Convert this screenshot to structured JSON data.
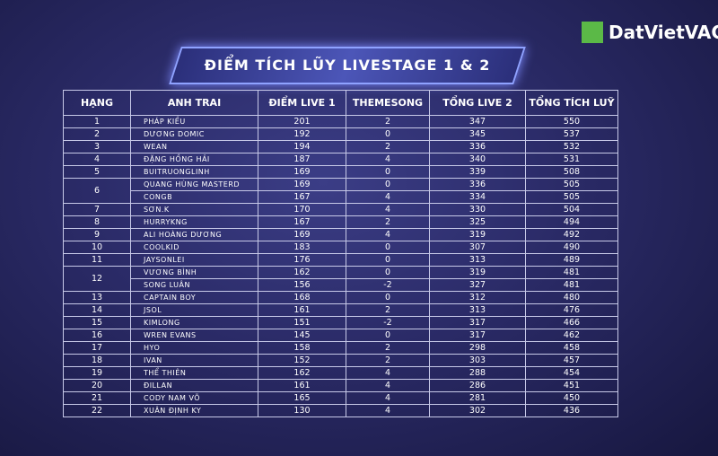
{
  "header": {
    "title": "ĐIỂM TÍCH LŨY LIVESTAGE 1 & 2",
    "logo": "DatVietVAC"
  },
  "table": {
    "columns": [
      "HẠNG",
      "ANH TRAI",
      "ĐIỂM LIVE 1",
      "THEMESONG",
      "TỔNG LIVE 2",
      "TỔNG TÍCH LUỸ"
    ],
    "groups": [
      {
        "rank": "1",
        "rows": [
          [
            "PHÁP KIỀU",
            201,
            2,
            347,
            550
          ]
        ]
      },
      {
        "rank": "2",
        "rows": [
          [
            "DƯƠNG DOMIC",
            192,
            0,
            345,
            537
          ]
        ]
      },
      {
        "rank": "3",
        "rows": [
          [
            "WEAN",
            194,
            2,
            336,
            532
          ]
        ]
      },
      {
        "rank": "4",
        "rows": [
          [
            "ĐẶNG HỒNG HẢI",
            187,
            4,
            340,
            531
          ]
        ]
      },
      {
        "rank": "5",
        "rows": [
          [
            "BUITRUONGLINH",
            169,
            0,
            339,
            508
          ]
        ]
      },
      {
        "rank": "6",
        "rows": [
          [
            "QUANG HÙNG MASTERD",
            169,
            0,
            336,
            505
          ],
          [
            "CONGB",
            167,
            4,
            334,
            505
          ]
        ]
      },
      {
        "rank": "7",
        "rows": [
          [
            "SƠN.K",
            170,
            4,
            330,
            504
          ]
        ]
      },
      {
        "rank": "8",
        "rows": [
          [
            "HURRYKNG",
            167,
            2,
            325,
            494
          ]
        ]
      },
      {
        "rank": "9",
        "rows": [
          [
            "ALI HOÀNG DƯƠNG",
            169,
            4,
            319,
            492
          ]
        ]
      },
      {
        "rank": "10",
        "rows": [
          [
            "COOLKID",
            183,
            0,
            307,
            490
          ]
        ]
      },
      {
        "rank": "11",
        "rows": [
          [
            "JAYSONLEI",
            176,
            0,
            313,
            489
          ]
        ]
      },
      {
        "rank": "12",
        "rows": [
          [
            "VƯƠNG BÌNH",
            162,
            0,
            319,
            481
          ],
          [
            "SONG LUÂN",
            156,
            -2,
            327,
            481
          ]
        ]
      },
      {
        "rank": "13",
        "rows": [
          [
            "CAPTAIN BOY",
            168,
            0,
            312,
            480
          ]
        ]
      },
      {
        "rank": "14",
        "rows": [
          [
            "JSOL",
            161,
            2,
            313,
            476
          ]
        ]
      },
      {
        "rank": "15",
        "rows": [
          [
            "KIMLONG",
            151,
            -2,
            317,
            466
          ]
        ]
      },
      {
        "rank": "16",
        "rows": [
          [
            "WREN EVANS",
            145,
            0,
            317,
            462
          ]
        ]
      },
      {
        "rank": "17",
        "rows": [
          [
            "HYO",
            158,
            2,
            298,
            458
          ]
        ]
      },
      {
        "rank": "18",
        "rows": [
          [
            "IVAN",
            152,
            2,
            303,
            457
          ]
        ]
      },
      {
        "rank": "19",
        "rows": [
          [
            "THỂ THIÊN",
            162,
            4,
            288,
            454
          ]
        ]
      },
      {
        "rank": "20",
        "rows": [
          [
            "ĐILLAN",
            161,
            4,
            286,
            451
          ]
        ]
      },
      {
        "rank": "21",
        "rows": [
          [
            "CODY NAM VÕ",
            165,
            4,
            281,
            450
          ]
        ]
      },
      {
        "rank": "22",
        "rows": [
          [
            "XUÂN ĐỊNH KY",
            130,
            4,
            302,
            436
          ]
        ]
      }
    ]
  }
}
